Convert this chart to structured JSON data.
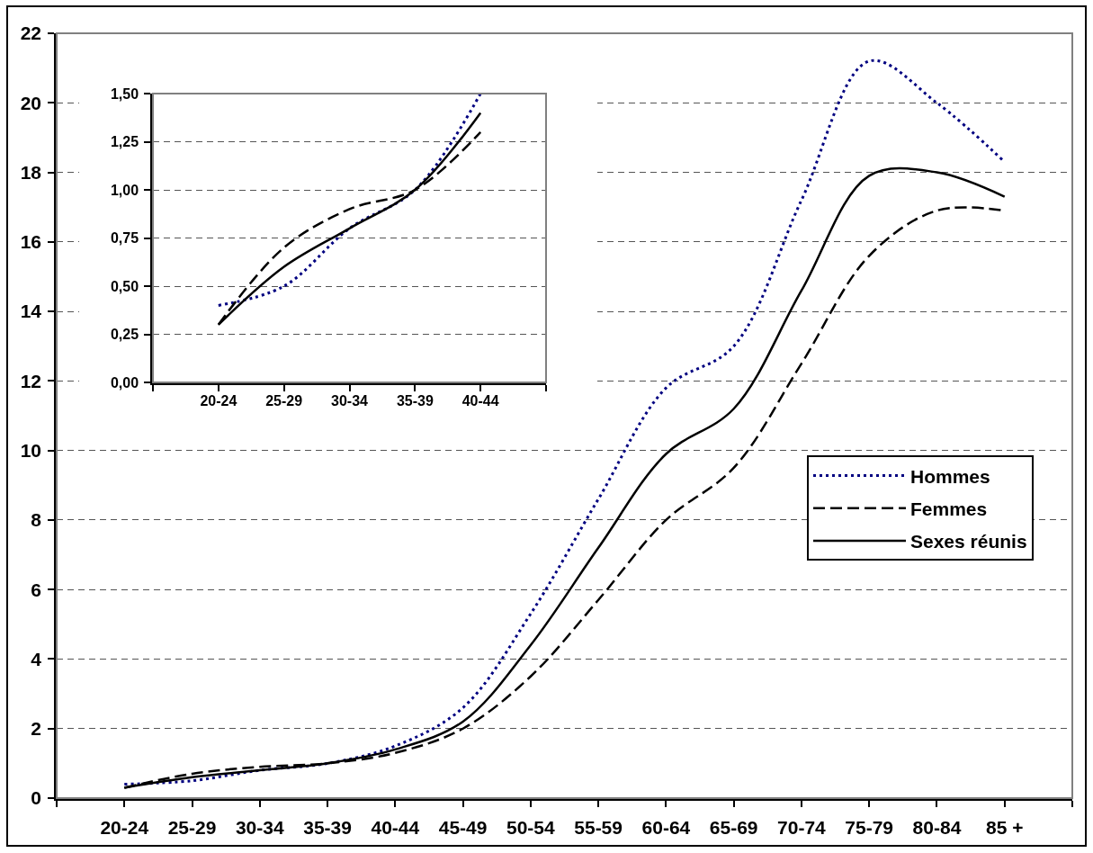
{
  "chart_data": [
    {
      "type": "line",
      "categories": [
        "20-24",
        "25-29",
        "30-34",
        "35-39",
        "40-44",
        "45-49",
        "50-54",
        "55-59",
        "60-64",
        "65-69",
        "70-74",
        "75-79",
        "80-84",
        "85 +"
      ],
      "series": [
        {
          "name": "Hommes",
          "color": "#000080",
          "line_style": "dotted",
          "values": [
            0.4,
            0.5,
            0.8,
            1.0,
            1.5,
            2.6,
            5.3,
            8.6,
            11.8,
            13.0,
            17.2,
            21.2,
            20.0,
            18.3
          ]
        },
        {
          "name": "Femmes",
          "color": "#000000",
          "line_style": "dashed",
          "values": [
            0.3,
            0.7,
            0.9,
            1.0,
            1.3,
            2.0,
            3.5,
            5.7,
            8.0,
            9.5,
            12.5,
            15.6,
            16.9,
            16.9
          ]
        },
        {
          "name": "Sexes réunis",
          "color": "#000000",
          "line_style": "solid",
          "values": [
            0.3,
            0.6,
            0.8,
            1.0,
            1.4,
            2.2,
            4.4,
            7.2,
            9.9,
            11.2,
            14.6,
            17.9,
            18.0,
            17.3
          ]
        }
      ],
      "ylim": [
        0,
        22
      ],
      "yticks": [
        0,
        2,
        4,
        6,
        8,
        10,
        12,
        14,
        16,
        18,
        20,
        22
      ],
      "grid": "y",
      "legend": "right"
    },
    {
      "type": "line",
      "categories": [
        "20-24",
        "25-29",
        "30-34",
        "35-39",
        "40-44"
      ],
      "series": [
        {
          "color": "#000080",
          "line_style": "dotted",
          "values": [
            0.4,
            0.5,
            0.8,
            1.0,
            1.5
          ]
        },
        {
          "color": "#000000",
          "line_style": "dashed",
          "values": [
            0.3,
            0.7,
            0.9,
            1.0,
            1.3
          ]
        },
        {
          "color": "#000000",
          "line_style": "solid",
          "values": [
            0.3,
            0.6,
            0.8,
            1.0,
            1.4
          ]
        }
      ],
      "ylim": [
        0,
        1.5
      ],
      "yticks": [
        {
          "value": 0,
          "label": "0,00"
        },
        {
          "value": 0.25,
          "label": "0,25"
        },
        {
          "value": 0.5,
          "label": "0,50"
        },
        {
          "value": 0.75,
          "label": "0,75"
        },
        {
          "value": 1.0,
          "label": "1,00"
        },
        {
          "value": 1.25,
          "label": "1,25"
        },
        {
          "value": 1.5,
          "label": "1,50"
        }
      ],
      "grid": "y"
    }
  ]
}
